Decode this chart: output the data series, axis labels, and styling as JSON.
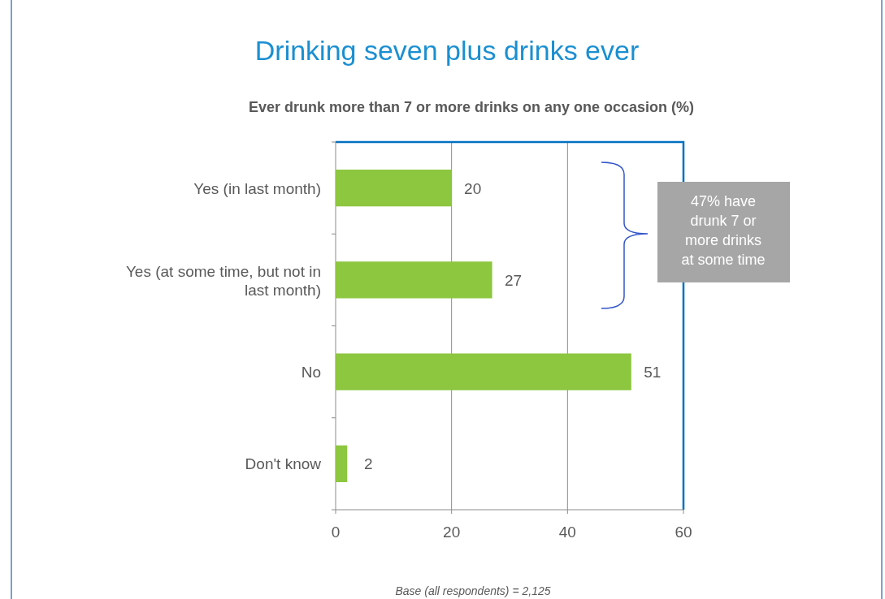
{
  "chart_data": {
    "type": "bar",
    "orientation": "horizontal",
    "title": "Drinking seven plus drinks ever",
    "subtitle": "Ever drunk more than 7 or more drinks on any one occasion (%)",
    "categories": [
      "Yes (in last month)",
      "Yes (at some time, but not in last month)",
      "No",
      "Don't know"
    ],
    "values": [
      20,
      27,
      51,
      2
    ],
    "color": "#8dc63f",
    "xlim": [
      0,
      60
    ],
    "xticks": [
      0,
      20,
      40,
      60
    ],
    "grid": "x",
    "data_labels": true,
    "annotations": [
      "47% have drunk 7 or more drinks at some time",
      "Base  (all respondents) = 2,125"
    ]
  }
}
